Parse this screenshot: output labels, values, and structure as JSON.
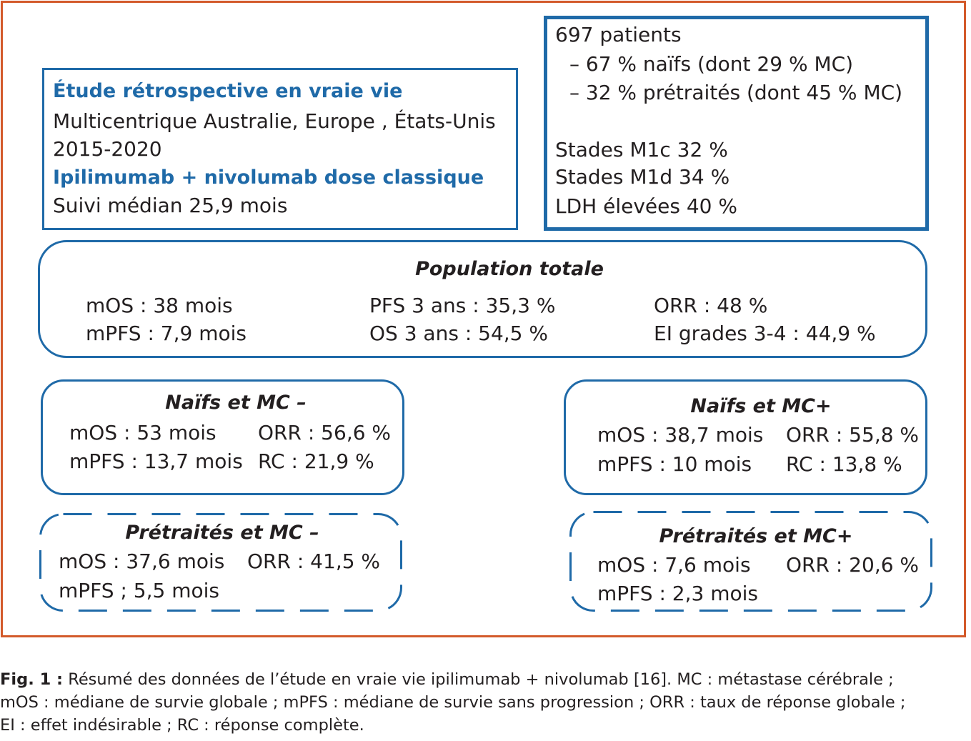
{
  "study": {
    "title": "Étude rétrospective en vraie vie",
    "line1": "Multicentrique Australie, Europe , États-Unis",
    "line2": "2015-2020",
    "treatment": "Ipilimumab + nivolumab dose classique",
    "followup": "Suivi médian 25,9 mois"
  },
  "patients": {
    "total": "697 patients",
    "naive": "– 67 % naïfs (dont 29 % MC)",
    "pretreated": "– 32 % prétraités (dont 45 % MC)",
    "m1c": "Stades M1c 32 %",
    "m1d": "Stades M1d 34 %",
    "ldh": "LDH élevées 40 %"
  },
  "population": {
    "title": "Population totale",
    "mos": "mOS : 38 mois",
    "mpfs": "mPFS : 7,9 mois",
    "pfs3": "PFS 3 ans : 35,3 %",
    "os3": "OS 3 ans : 54,5 %",
    "orr": "ORR : 48 %",
    "ei": "EI grades 3-4 : 44,9 %"
  },
  "naive_mc_neg": {
    "title": "Naïfs et MC –",
    "mos": "mOS : 53 mois",
    "orr": "ORR : 56,6 %",
    "mpfs": "mPFS : 13,7 mois",
    "rc": "RC : 21,9 %"
  },
  "naive_mc_pos": {
    "title": "Naïfs et MC+",
    "mos": "mOS : 38,7 mois",
    "orr": "ORR : 55,8 %",
    "mpfs": "mPFS : 10 mois",
    "rc": "RC : 13,8 %"
  },
  "pre_mc_neg": {
    "title": "Prétraités et MC –",
    "mos": "mOS : 37,6 mois",
    "orr": "ORR : 41,5 %",
    "mpfs": "mPFS ; 5,5 mois"
  },
  "pre_mc_pos": {
    "title": "Prétraités et MC+",
    "mos": "mOS : 7,6 mois",
    "orr": "ORR : 20,6 %",
    "mpfs": "mPFS : 2,3 mois"
  },
  "caption": {
    "label": "Fig. 1 :",
    "line1": "Résumé des données de l’étude en vraie vie ipilimumab + nivolumab [16]. MC : métastase cérébrale ;",
    "line2": "mOS : médiane de survie globale ; mPFS : médiane de survie sans progression ; ORR : taux de réponse globale ;",
    "line3": "EI : effet indésirable ; RC : réponse complète."
  },
  "colors": {
    "frame": "#d35a2a",
    "box": "#1f6aa8",
    "text": "#231f20"
  }
}
